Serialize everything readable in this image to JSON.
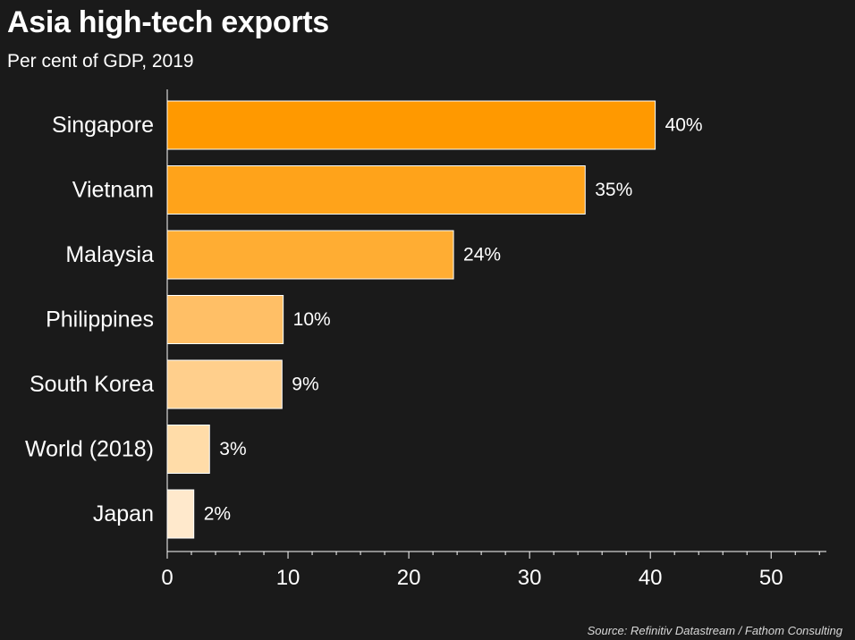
{
  "chart_data": {
    "type": "bar",
    "orientation": "horizontal",
    "title": "Asia high-tech exports",
    "subtitle": "Per cent of GDP, 2019",
    "categories": [
      "Singapore",
      "Vietnam",
      "Malaysia",
      "Philippines",
      "South Korea",
      "World (2018)",
      "Japan"
    ],
    "values": [
      40.4,
      34.6,
      23.7,
      9.6,
      9.5,
      3.5,
      2.2
    ],
    "value_labels": [
      "40%",
      "35%",
      "24%",
      "10%",
      "9%",
      "3%",
      "2%"
    ],
    "colors": [
      "#ff9900",
      "#ffa31a",
      "#ffad33",
      "#ffbf66",
      "#ffcf8c",
      "#ffdca8",
      "#ffe9cc"
    ],
    "xlabel": "",
    "ylabel": "",
    "xlim": [
      0,
      54.5
    ],
    "xticks": [
      0,
      10,
      20,
      30,
      40,
      50
    ],
    "xtick_labels": [
      "0",
      "10",
      "20",
      "30",
      "40",
      "50"
    ],
    "grid": false,
    "source": "Source: Refinitiv Datastream / Fathom Consulting"
  }
}
